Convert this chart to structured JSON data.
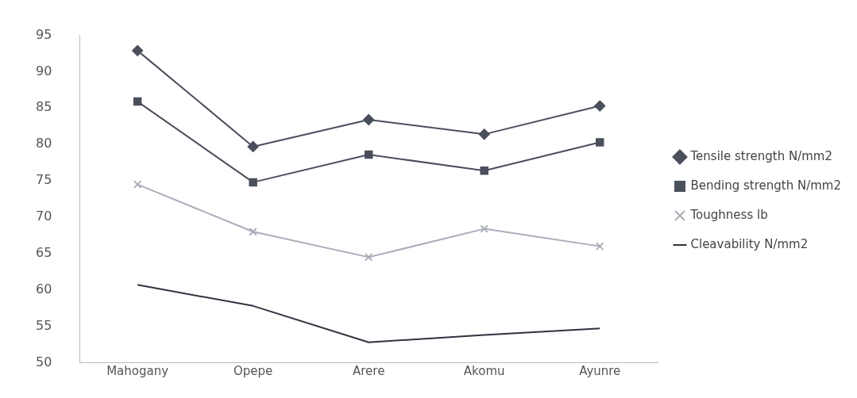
{
  "chart_data": {
    "type": "line",
    "categories": [
      "Mahogany",
      "Opepe",
      "Arere",
      "Akomu",
      "Ayunre"
    ],
    "series": [
      {
        "name": "Tensile strength N/mm2",
        "color": "#4a4f5c",
        "marker": "diamond",
        "values": [
          92.9,
          79.7,
          83.4,
          81.4,
          85.3
        ]
      },
      {
        "name": "Bending strength N/mm2",
        "color": "#4a4f5c",
        "marker": "square",
        "values": [
          85.9,
          74.8,
          78.6,
          76.4,
          80.3
        ]
      },
      {
        "name": "Toughness lb",
        "color": "#a9adb8",
        "marker": "cross",
        "values": [
          74.5,
          68.0,
          64.5,
          68.4,
          66.0
        ]
      },
      {
        "name": "Cleavability N/mm2",
        "color": "#2f333d",
        "marker": "none",
        "values": [
          60.7,
          57.8,
          52.8,
          53.8,
          54.7
        ]
      }
    ],
    "ylim": [
      50,
      95
    ],
    "yticks": [
      50,
      55,
      60,
      65,
      70,
      75,
      80,
      85,
      90,
      95
    ],
    "grid": false,
    "legend": "right",
    "line_style": "solid"
  }
}
